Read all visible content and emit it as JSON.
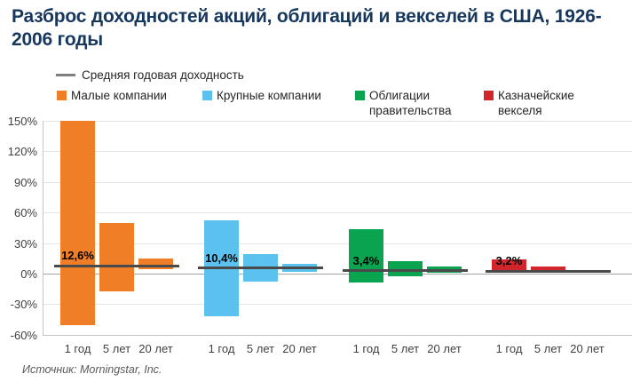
{
  "source": "Источник: Morningstar, Inc.",
  "chart_data": {
    "type": "bar",
    "subtype": "floating-range-bars",
    "title": "Разброс доходностей акций, облигаций и векселей в США, 1926-2006 годы",
    "mean_legend": "Средняя годовая доходность",
    "categories": [
      "1 год",
      "5 лет",
      "20 лет"
    ],
    "ytick_labels": [
      "150%",
      "120%",
      "90%",
      "60%",
      "30%",
      "0%",
      "-30%",
      "-60%"
    ],
    "ytick_values": [
      150,
      120,
      90,
      60,
      30,
      0,
      -30,
      -60
    ],
    "ylim": [
      -60,
      150
    ],
    "grid": true,
    "legend_position": "top",
    "series": [
      {
        "name": "Малые компании",
        "color": "#F07E26",
        "mean_label": "12,6%",
        "mean_value": 12.6,
        "ranges_pct": [
          [
            -50,
            150
          ],
          [
            -17,
            50
          ],
          [
            5,
            15
          ]
        ]
      },
      {
        "name": "Крупные компании",
        "color": "#5BC2EF",
        "mean_label": "10,4%",
        "mean_value": 10.4,
        "ranges_pct": [
          [
            -41,
            53
          ],
          [
            -7,
            20
          ],
          [
            2,
            10
          ]
        ]
      },
      {
        "name": "Облигации правительства",
        "color": "#0AA350",
        "mean_label": "3,4%",
        "mean_value": 3.4,
        "ranges_pct": [
          [
            -8,
            44
          ],
          [
            -2,
            13
          ],
          [
            1,
            7
          ]
        ]
      },
      {
        "name": "Казначейские векселя",
        "color": "#D2262C",
        "mean_label": "3,2%",
        "mean_value": 3.2,
        "ranges_pct": [
          [
            1,
            14
          ],
          [
            1,
            7
          ],
          [
            1,
            4
          ]
        ]
      }
    ]
  }
}
